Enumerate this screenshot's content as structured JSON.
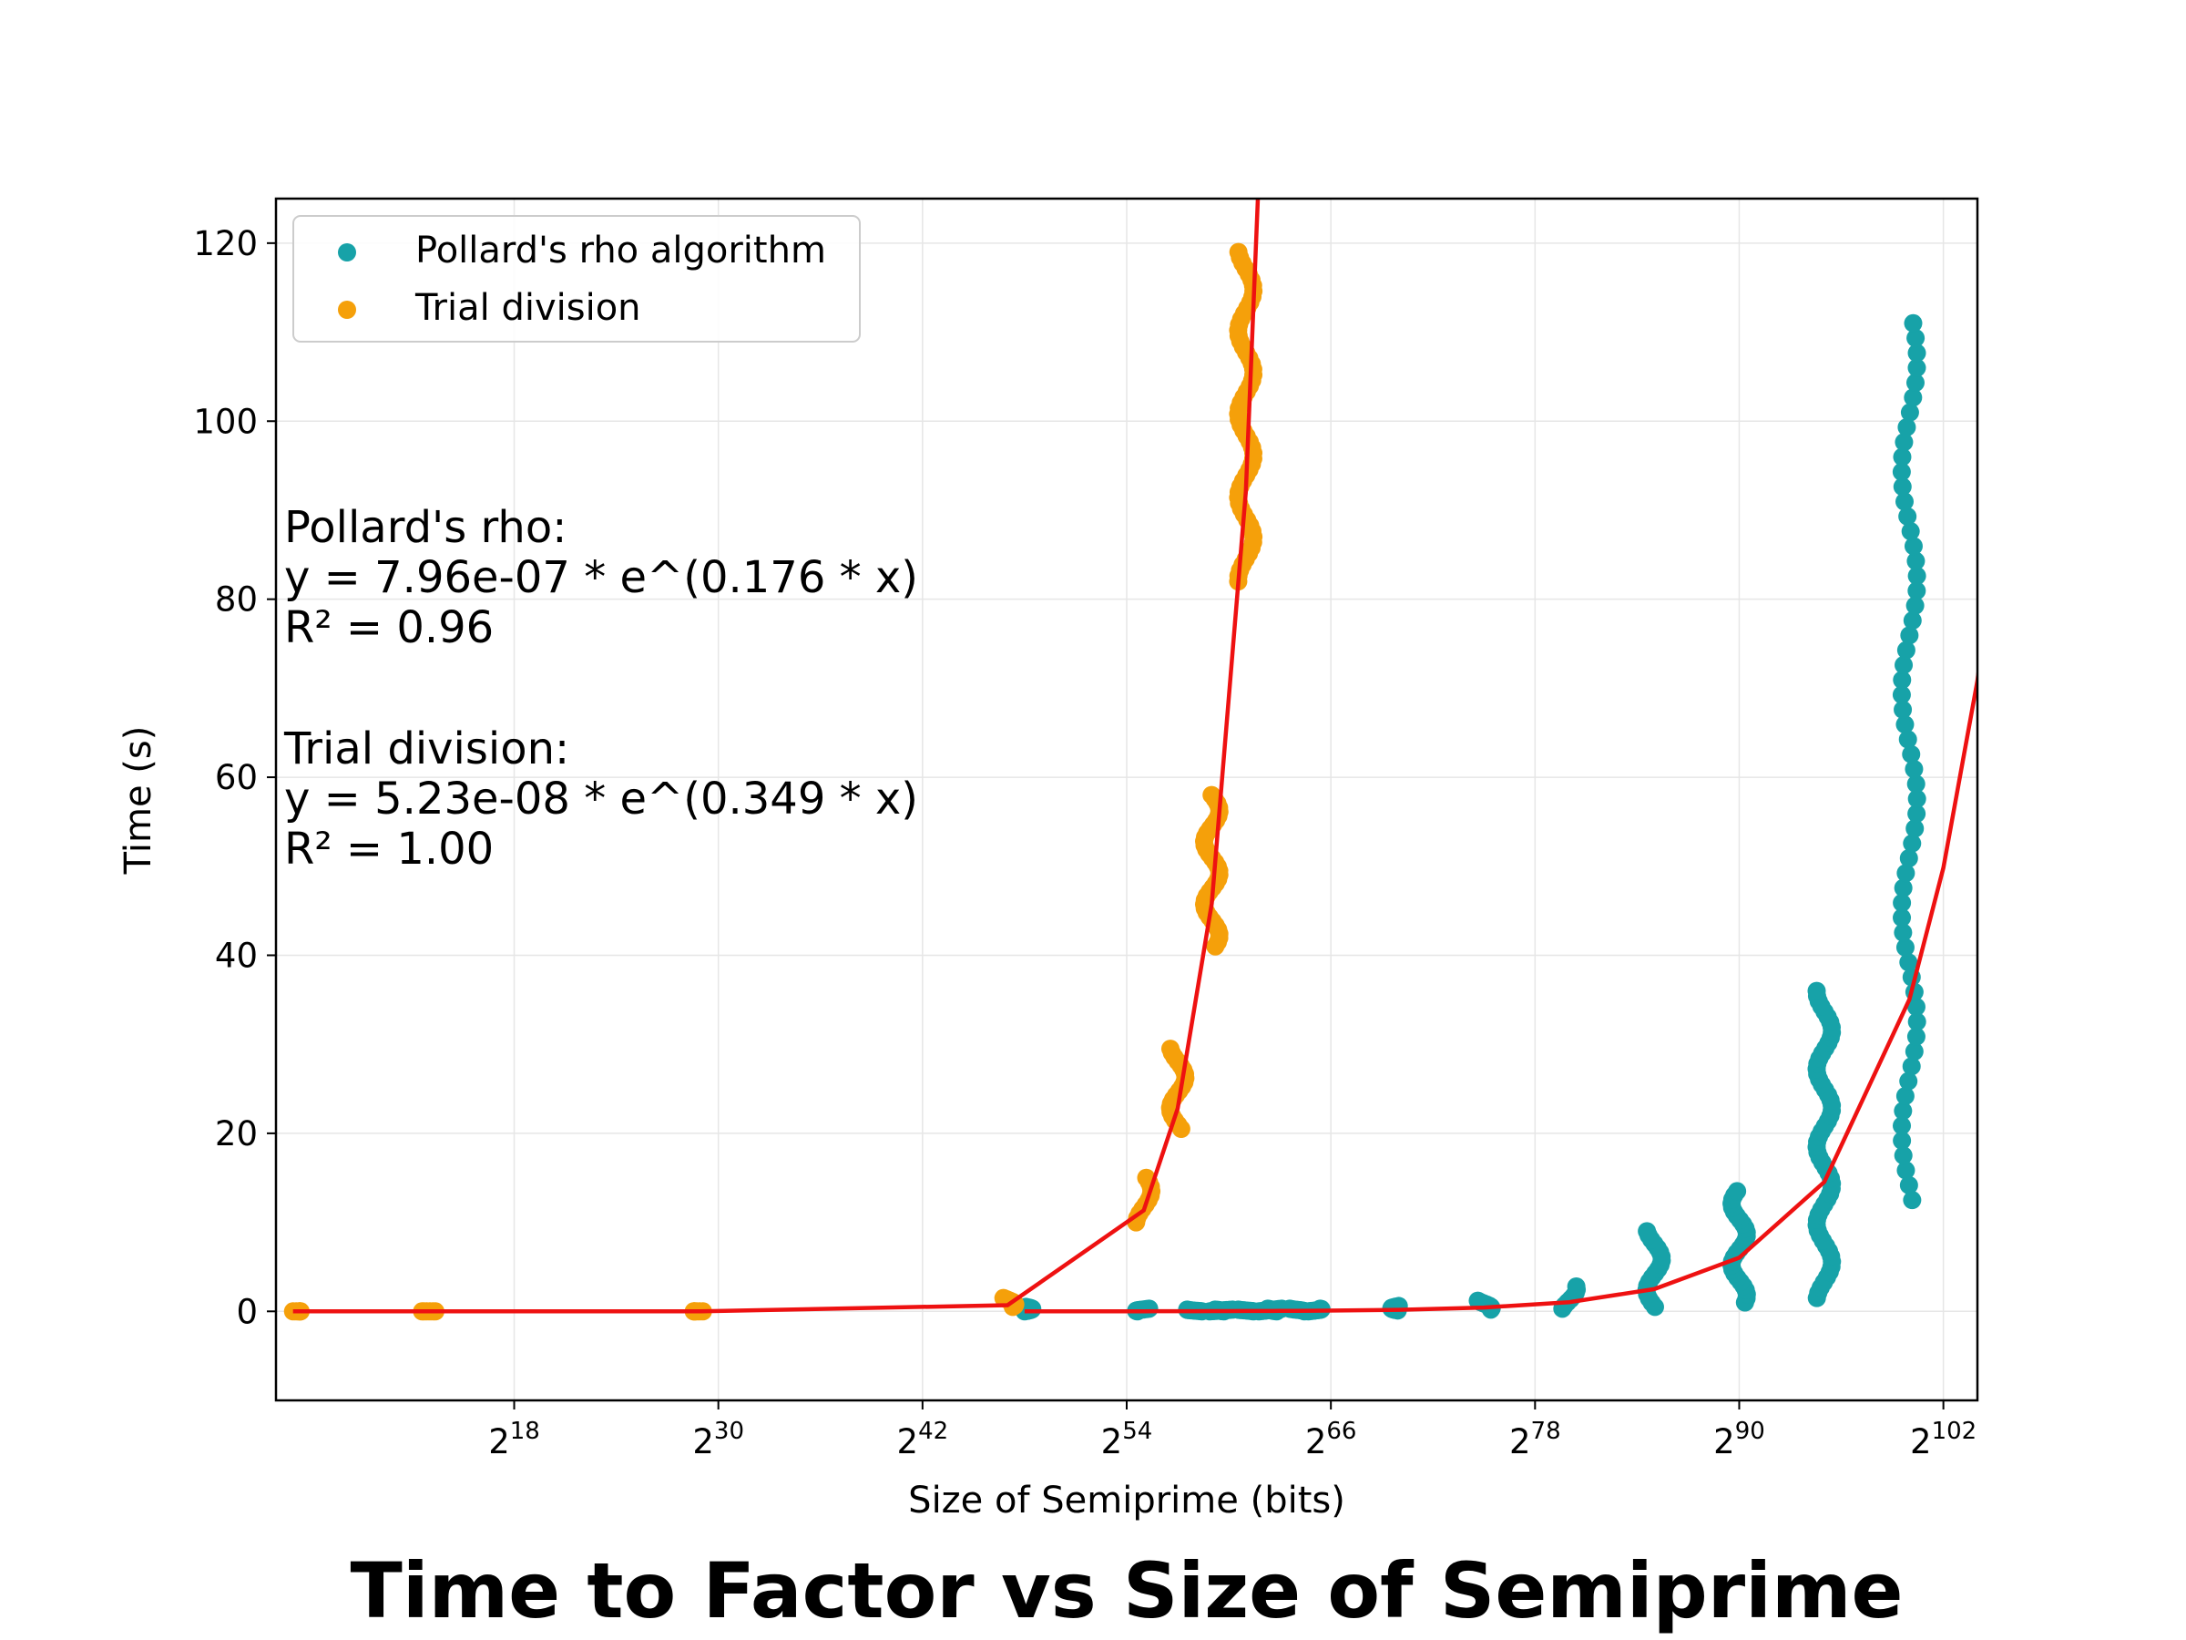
{
  "chart_data": {
    "type": "scatter",
    "title": "Time to Factor vs Size of Semiprime",
    "xlabel": "Size of Semiprime (bits)",
    "ylabel": "Time (s)",
    "x_scale": "log2",
    "xlim": [
      4,
      104
    ],
    "ylim": [
      -10,
      125
    ],
    "x_ticks": [
      18,
      30,
      42,
      54,
      66,
      78,
      90,
      102
    ],
    "x_tick_base": "2",
    "y_ticks": [
      0,
      20,
      40,
      60,
      80,
      100,
      120
    ],
    "grid": true,
    "legend_position": "top-left",
    "legend": [
      "Pollard's rho algorithm",
      "Trial division"
    ],
    "series": [
      {
        "name": "Pollard's rho algorithm",
        "color": "#17a2a8",
        "clusters": [
          {
            "x": 48,
            "y_min": 0,
            "y_max": 0.5
          },
          {
            "x": 55,
            "y_min": 0,
            "y_max": 0.3
          },
          {
            "x": 58,
            "y_min": 0,
            "y_max": 0.2
          },
          {
            "x": 59,
            "y_min": 0,
            "y_max": 0.2
          },
          {
            "x": 60,
            "y_min": 0,
            "y_max": 0.2
          },
          {
            "x": 61,
            "y_min": 0,
            "y_max": 0.2
          },
          {
            "x": 62,
            "y_min": 0,
            "y_max": 0.3
          },
          {
            "x": 63,
            "y_min": 0,
            "y_max": 0.3
          },
          {
            "x": 64,
            "y_min": 0,
            "y_max": 0.3
          },
          {
            "x": 65,
            "y_min": 0,
            "y_max": 0.3
          },
          {
            "x": 70,
            "y_min": 0.1,
            "y_max": 0.6
          },
          {
            "x": 75,
            "y_min": 0.2,
            "y_max": 1.2
          },
          {
            "x": 80,
            "y_min": 0.3,
            "y_max": 2.8
          },
          {
            "x": 85,
            "y_min": 0.5,
            "y_max": 9
          },
          {
            "x": 90,
            "y_min": 1,
            "y_max": 13.5
          },
          {
            "x": 95,
            "y_min": 1.5,
            "y_max": 36
          },
          {
            "x": 100,
            "y_min": 12.5,
            "y_max": 111
          }
        ]
      },
      {
        "name": "Trial division",
        "color": "#f5a00a",
        "clusters": [
          {
            "x": 5,
            "y_min": 0,
            "y_max": 0
          },
          {
            "x": 13,
            "y_min": 0,
            "y_max": 0
          },
          {
            "x": 29,
            "y_min": 0,
            "y_max": 0
          },
          {
            "x": 47,
            "y_min": 0.5,
            "y_max": 1.5
          },
          {
            "x": 55,
            "y_min": 10,
            "y_max": 15
          },
          {
            "x": 57,
            "y_min": 20.5,
            "y_max": 29.5
          },
          {
            "x": 59,
            "y_min": 41,
            "y_max": 58
          },
          {
            "x": 61,
            "y_min": 82,
            "y_max": 119
          }
        ]
      }
    ],
    "fits": [
      {
        "series": "Pollard's rho algorithm",
        "color": "#ee1111",
        "a": 7.96e-07,
        "b": 0.176
      },
      {
        "series": "Trial division",
        "color": "#ee1111",
        "a": 5.23e-08,
        "b": 0.349
      }
    ],
    "annotations": [
      [
        "Pollard's rho:",
        "y = 7.96e-07 * e^(0.176 * x)",
        "R² = 0.96"
      ],
      [
        "Trial division:",
        "y = 5.23e-08 * e^(0.349 * x)",
        "R² = 1.00"
      ]
    ]
  }
}
